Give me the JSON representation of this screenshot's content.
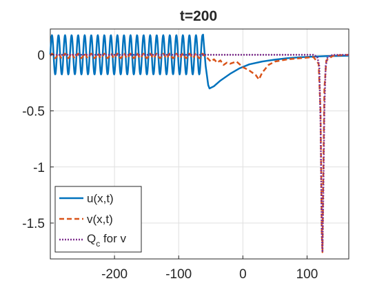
{
  "chart_data": {
    "type": "line",
    "title": "t=200",
    "xlabel": "",
    "ylabel": "",
    "xlim": [
      -300,
      165
    ],
    "ylim": [
      -1.82,
      0.23
    ],
    "xticks": [
      -200,
      -100,
      0,
      100
    ],
    "yticks": [
      0,
      -0.5,
      -1,
      -1.5
    ],
    "xtick_labels": [
      "-200",
      "-100",
      "0",
      "100"
    ],
    "ytick_labels": [
      "0",
      "-0.5",
      "-1",
      "-1.5"
    ],
    "grid": true,
    "legend": {
      "placement": "bottom-left"
    },
    "series": [
      {
        "name": "u(x,t)",
        "style": "solid",
        "color": "#0072BD",
        "description_points": {
          "oscillation": {
            "x_start": -300,
            "x_end": -62,
            "period": 10.2,
            "center": 0.0,
            "amplitude": 0.175
          },
          "x": [
            -62,
            -58,
            -54,
            -52,
            -45,
            -35,
            -20,
            -5,
            10,
            30,
            50,
            70,
            90,
            110,
            130,
            150,
            165
          ],
          "y": [
            0.18,
            -0.1,
            -0.27,
            -0.3,
            -0.28,
            -0.23,
            -0.17,
            -0.12,
            -0.085,
            -0.06,
            -0.043,
            -0.03,
            -0.022,
            -0.016,
            -0.012,
            -0.01,
            -0.008
          ]
        }
      },
      {
        "name": "v(x,t)",
        "style": "dashed",
        "color": "#D95319",
        "description_points": {
          "oscillation": {
            "x_start": -300,
            "x_end": -62,
            "period": 10.2,
            "center": -0.01,
            "amplitude": 0.02
          },
          "x": [
            -62,
            -55,
            -50,
            -45,
            -40,
            -35,
            -30,
            -25,
            -20,
            -10,
            0,
            10,
            20,
            25,
            30,
            40,
            50,
            70,
            90,
            110,
            118,
            121,
            123,
            124,
            125,
            127,
            130,
            140,
            150,
            165
          ],
          "y": [
            0.0,
            -0.03,
            -0.06,
            -0.04,
            -0.07,
            -0.05,
            -0.09,
            -0.07,
            -0.08,
            -0.06,
            -0.11,
            -0.14,
            -0.18,
            -0.22,
            -0.16,
            -0.09,
            -0.06,
            -0.04,
            -0.03,
            -0.02,
            -0.08,
            -0.5,
            -1.6,
            -1.76,
            -1.2,
            -0.3,
            -0.05,
            -0.01,
            -0.005,
            0.0
          ]
        }
      },
      {
        "name": "Q_c for v",
        "style": "dotted",
        "color": "#7E2F8E",
        "description_points": {
          "x": [
            -300,
            110,
            116,
            119,
            121,
            123,
            124,
            125,
            127,
            129,
            132,
            140,
            165
          ],
          "y": [
            0.0,
            0.0,
            -0.02,
            -0.1,
            -0.6,
            -1.6,
            -1.76,
            -1.4,
            -0.5,
            -0.1,
            -0.02,
            0.0,
            0.0
          ]
        }
      }
    ]
  },
  "legend_entries": [
    {
      "text": "u(x,t)"
    },
    {
      "text": "v(x,t)"
    },
    {
      "text_main": "Q",
      "text_sub": "c",
      "text_rest": " for v"
    }
  ],
  "colors": {
    "u": "#0072BD",
    "v": "#D95319",
    "q": "#7E2F8E",
    "grid": "#dfdfdf",
    "axis": "#262626"
  }
}
